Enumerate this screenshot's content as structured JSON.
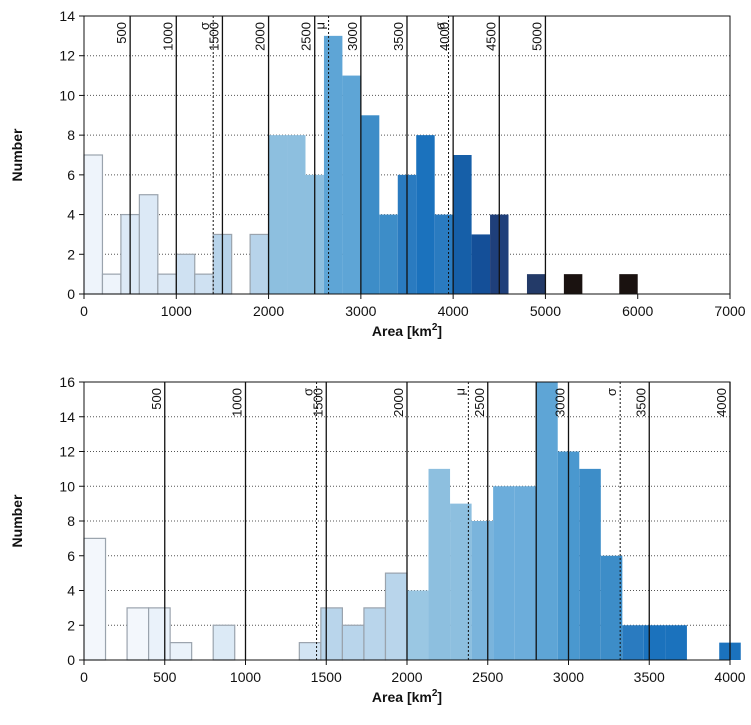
{
  "chart_data": [
    {
      "type": "bar",
      "xlabel": "Area [km",
      "xlabel_sup": "2",
      "xlabel_end": "]",
      "ylabel": "Number",
      "xlim": [
        0,
        7000
      ],
      "ylim": [
        0,
        14
      ],
      "xticks": [
        0,
        1000,
        2000,
        3000,
        4000,
        5000,
        6000,
        7000
      ],
      "yticks": [
        0,
        2,
        4,
        6,
        8,
        10,
        12,
        14
      ],
      "grid": "horizontal-dotted",
      "bin_width": 200,
      "bins": [
        {
          "x0": 0,
          "value": 7,
          "color": "#eef4fb",
          "outline": true
        },
        {
          "x0": 200,
          "value": 1,
          "color": "#eef4fb",
          "outline": true
        },
        {
          "x0": 400,
          "value": 4,
          "color": "#dce9f6",
          "outline": true
        },
        {
          "x0": 600,
          "value": 5,
          "color": "#dce9f6",
          "outline": true
        },
        {
          "x0": 800,
          "value": 1,
          "color": "#dce9f6",
          "outline": true
        },
        {
          "x0": 1000,
          "value": 2,
          "color": "#cfe1f2",
          "outline": true
        },
        {
          "x0": 1200,
          "value": 1,
          "color": "#cfe1f2",
          "outline": true
        },
        {
          "x0": 1400,
          "value": 3,
          "color": "#b7d3ea",
          "outline": true
        },
        {
          "x0": 1800,
          "value": 3,
          "color": "#b7d3ea",
          "outline": true
        },
        {
          "x0": 2000,
          "value": 8,
          "color": "#8dbfdf",
          "outline": false
        },
        {
          "x0": 2200,
          "value": 8,
          "color": "#8dbfdf",
          "outline": false
        },
        {
          "x0": 2400,
          "value": 6,
          "color": "#8dbfdf",
          "outline": false
        },
        {
          "x0": 2600,
          "value": 13,
          "color": "#5ea5d6",
          "outline": false
        },
        {
          "x0": 2800,
          "value": 11,
          "color": "#5ea5d6",
          "outline": false
        },
        {
          "x0": 3000,
          "value": 9,
          "color": "#3d8dc8",
          "outline": false
        },
        {
          "x0": 3200,
          "value": 4,
          "color": "#3d8dc8",
          "outline": false
        },
        {
          "x0": 3400,
          "value": 6,
          "color": "#2a7bc0",
          "outline": false
        },
        {
          "x0": 3600,
          "value": 8,
          "color": "#1b72bd",
          "outline": false
        },
        {
          "x0": 3800,
          "value": 4,
          "color": "#2a7bc0",
          "outline": false
        },
        {
          "x0": 4000,
          "value": 7,
          "color": "#165fa8",
          "outline": false
        },
        {
          "x0": 4200,
          "value": 3,
          "color": "#144f98",
          "outline": false
        },
        {
          "x0": 4400,
          "value": 4,
          "color": "#1f3f7a",
          "outline": false
        },
        {
          "x0": 4800,
          "value": 1,
          "color": "#233a68",
          "outline": false
        },
        {
          "x0": 5200,
          "value": 1,
          "color": "#1a1210",
          "outline": false
        },
        {
          "x0": 5800,
          "value": 1,
          "color": "#1a1210",
          "outline": false
        }
      ],
      "vlines": [
        {
          "x": 500,
          "label": "500",
          "style": "solid"
        },
        {
          "x": 1000,
          "label": "1000",
          "style": "solid"
        },
        {
          "x": 1500,
          "label": "1500",
          "style": "solid"
        },
        {
          "x": 2000,
          "label": "2000",
          "style": "solid"
        },
        {
          "x": 2500,
          "label": "2500",
          "style": "solid"
        },
        {
          "x": 3000,
          "label": "3000",
          "style": "solid"
        },
        {
          "x": 3500,
          "label": "3500",
          "style": "solid"
        },
        {
          "x": 4000,
          "label": "4000",
          "style": "solid"
        },
        {
          "x": 4500,
          "label": "4500",
          "style": "solid"
        },
        {
          "x": 5000,
          "label": "5000",
          "style": "solid"
        }
      ],
      "stat_lines": [
        {
          "x": 1400,
          "label": "σ"
        },
        {
          "x": 2650,
          "label": "μ"
        },
        {
          "x": 3950,
          "label": "σ"
        }
      ]
    },
    {
      "type": "bar",
      "xlabel": "Area [km",
      "xlabel_sup": "2",
      "xlabel_end": "]",
      "ylabel": "Number",
      "xlim": [
        0,
        4000
      ],
      "ylim": [
        0,
        16
      ],
      "xticks": [
        0,
        500,
        1000,
        1500,
        2000,
        2500,
        3000,
        3500,
        4000
      ],
      "yticks": [
        0,
        2,
        4,
        6,
        8,
        10,
        12,
        14,
        16
      ],
      "grid": "horizontal-dotted",
      "bin_width": 133.3,
      "bins": [
        {
          "x0": 0,
          "value": 7,
          "color": "#f3f7fc",
          "outline": true
        },
        {
          "x0": 266.7,
          "value": 3,
          "color": "#f3f7fc",
          "outline": true
        },
        {
          "x0": 400,
          "value": 3,
          "color": "#eaf2fa",
          "outline": true
        },
        {
          "x0": 533.3,
          "value": 1,
          "color": "#eaf2fa",
          "outline": true
        },
        {
          "x0": 800,
          "value": 2,
          "color": "#dceaf6",
          "outline": true
        },
        {
          "x0": 1333.3,
          "value": 1,
          "color": "#d2e4f3",
          "outline": true
        },
        {
          "x0": 1466.7,
          "value": 3,
          "color": "#b9d5eb",
          "outline": true
        },
        {
          "x0": 1600,
          "value": 2,
          "color": "#b9d5eb",
          "outline": true
        },
        {
          "x0": 1733.3,
          "value": 3,
          "color": "#b9d5eb",
          "outline": true
        },
        {
          "x0": 1866.7,
          "value": 5,
          "color": "#b9d5eb",
          "outline": true
        },
        {
          "x0": 2000,
          "value": 4,
          "color": "#9ac7e3",
          "outline": false
        },
        {
          "x0": 2133.3,
          "value": 11,
          "color": "#8dbfdf",
          "outline": false
        },
        {
          "x0": 2266.7,
          "value": 9,
          "color": "#8dbfdf",
          "outline": false
        },
        {
          "x0": 2400,
          "value": 8,
          "color": "#7ab4dc",
          "outline": false
        },
        {
          "x0": 2533.3,
          "value": 10,
          "color": "#6caddb",
          "outline": false
        },
        {
          "x0": 2666.7,
          "value": 10,
          "color": "#6caddb",
          "outline": false
        },
        {
          "x0": 2800,
          "value": 16,
          "color": "#5ea5d6",
          "outline": false
        },
        {
          "x0": 2933.3,
          "value": 12,
          "color": "#4a98cf",
          "outline": false
        },
        {
          "x0": 3066.7,
          "value": 11,
          "color": "#3d8dc8",
          "outline": false
        },
        {
          "x0": 3200,
          "value": 6,
          "color": "#3d8dc8",
          "outline": false
        },
        {
          "x0": 3333.3,
          "value": 2,
          "color": "#2a7bc0",
          "outline": false
        },
        {
          "x0": 3466.7,
          "value": 2,
          "color": "#1b72bd",
          "outline": false
        },
        {
          "x0": 3600,
          "value": 2,
          "color": "#1b72bd",
          "outline": false
        },
        {
          "x0": 3933.3,
          "value": 1,
          "color": "#1b72bd",
          "outline": false
        }
      ],
      "vlines": [
        {
          "x": 500,
          "label": "500",
          "style": "solid"
        },
        {
          "x": 1000,
          "label": "1000",
          "style": "solid"
        },
        {
          "x": 1500,
          "label": "1500",
          "style": "solid"
        },
        {
          "x": 2000,
          "label": "2000",
          "style": "solid"
        },
        {
          "x": 2500,
          "label": "2500",
          "style": "solid"
        },
        {
          "x": 2800,
          "label": "",
          "style": "solid"
        },
        {
          "x": 3000,
          "label": "3000",
          "style": "solid"
        },
        {
          "x": 3500,
          "label": "3500",
          "style": "solid"
        },
        {
          "x": 4000,
          "label": "4000",
          "style": "solid"
        }
      ],
      "stat_lines": [
        {
          "x": 1440,
          "label": "σ"
        },
        {
          "x": 2380,
          "label": "μ"
        },
        {
          "x": 3320,
          "label": "σ"
        }
      ]
    }
  ]
}
